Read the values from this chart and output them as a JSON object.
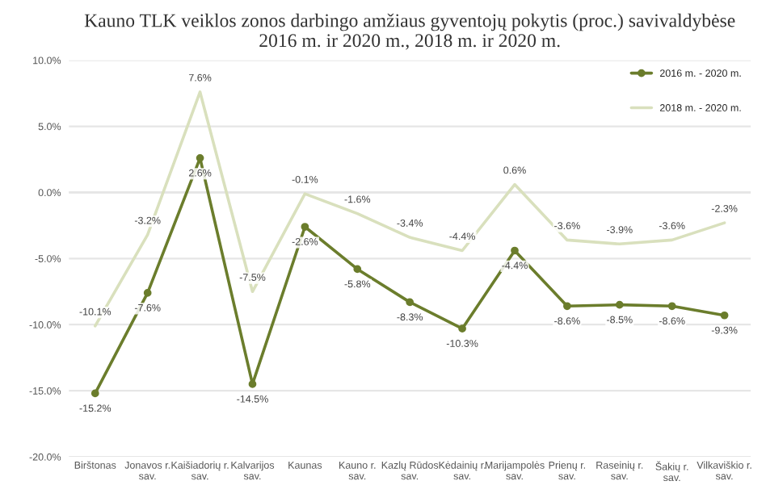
{
  "chart_data": {
    "type": "line",
    "title": "Kauno TLK veiklos zonos darbingo amžiaus gyventojų pokytis (proc.) savivaldybėse\n2016 m. ir 2020 m., 2018 m. ir 2020 m.",
    "categories": [
      "Birštonas",
      "Jonavos r. sav.",
      "Kaišiadorių r. sav.",
      "Kalvarijos sav.",
      "Kaunas",
      "Kauno r. sav.",
      "Kazlų Rūdos sav.",
      "Kėdainių r. sav.",
      "Marijampolės sav.",
      "Prienų r. sav.",
      "Raseinių r. sav.",
      "Šakių r. sav.",
      "Vilkaviškio r. sav."
    ],
    "series": [
      {
        "name": "2016 m. - 2020 m.",
        "color": "#6b7d2c",
        "marker": "circle",
        "values": [
          -15.2,
          -7.6,
          2.6,
          -14.5,
          -2.6,
          -5.8,
          -8.3,
          -10.3,
          -4.4,
          -8.6,
          -8.5,
          -8.6,
          -9.3
        ],
        "value_labels": [
          "-15.2%",
          "-7.6%",
          "2.6%",
          "-14.5%",
          "-2.6%",
          "-5.8%",
          "-8.3%",
          "-10.3%",
          "-4.4%",
          "-8.6%",
          "-8.5%",
          "-8.6%",
          "-9.3%"
        ]
      },
      {
        "name": "2018 m. - 2020 m.",
        "color": "#d9e0bd",
        "marker": "none",
        "values": [
          -10.1,
          -3.2,
          7.6,
          -7.5,
          -0.1,
          -1.6,
          -3.4,
          -4.4,
          0.6,
          -3.6,
          -3.9,
          -3.6,
          -2.3
        ],
        "value_labels": [
          "-10.1%",
          "-3.2%",
          "7.6%",
          "-7.5%",
          "-0.1%",
          "-1.6%",
          "-3.4%",
          "-4.4%",
          "0.6%",
          "-3.6%",
          "-3.9%",
          "-3.6%",
          "-2.3%"
        ]
      }
    ],
    "ylim": [
      -20,
      10
    ],
    "yticks": [
      {
        "value": -20,
        "label": "-20.0%"
      },
      {
        "value": -15,
        "label": "-15.0%"
      },
      {
        "value": -10,
        "label": "-10.0%"
      },
      {
        "value": -5,
        "label": "-5.0%"
      },
      {
        "value": 0,
        "label": "0.0%"
      },
      {
        "value": 5,
        "label": "5.0%"
      },
      {
        "value": 10,
        "label": "10.0%"
      }
    ],
    "grid": "y",
    "legend": "top right"
  }
}
